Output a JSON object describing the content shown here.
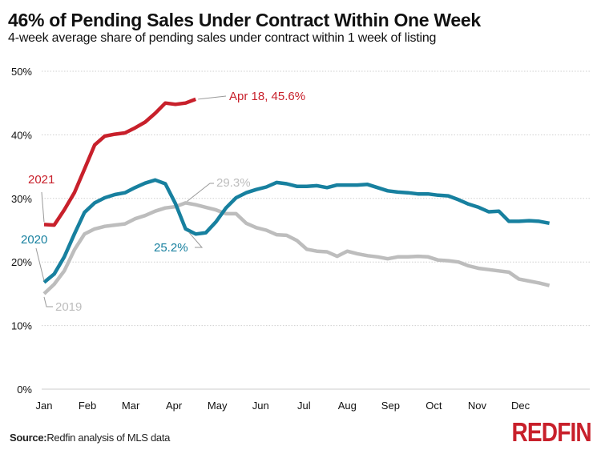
{
  "header": {
    "title": "46% of Pending Sales Under Contract Within One Week",
    "subtitle": "4-week average share of pending sales under contract within 1 week of listing"
  },
  "footer": {
    "source_label": "Source:",
    "source_text": "Redfin analysis of MLS data",
    "logo": "REDFIN"
  },
  "colors": {
    "2021": "#c8202b",
    "2020": "#17809f",
    "2019": "#bdbdbd",
    "grid": "#cfcfcf",
    "axis": "#cccccc"
  },
  "chart_data": {
    "type": "line",
    "title": "46% of Pending Sales Under Contract Within One Week",
    "subtitle": "4-week average share of pending sales under contract within 1 week of listing",
    "xlabel": "",
    "ylabel": "",
    "ylim": [
      0,
      50
    ],
    "yticks": [
      0,
      10,
      20,
      30,
      40,
      50
    ],
    "ytick_labels": [
      "0%",
      "10%",
      "20%",
      "30%",
      "40%",
      "50%"
    ],
    "xtick_labels": [
      "Jan",
      "Feb",
      "Mar",
      "Apr",
      "May",
      "Jun",
      "Jul",
      "Aug",
      "Sep",
      "Oct",
      "Nov",
      "Dec"
    ],
    "x_unit": "week of year (0 = first week of Jan, 52 weeks)",
    "grid": "horizontal dotted",
    "series": [
      {
        "name": "2021",
        "label": "2021",
        "values": [
          25.9,
          25.8,
          28.2,
          30.9,
          34.6,
          38.4,
          39.8,
          40.1,
          40.3,
          41.1,
          42.0,
          43.4,
          45.0,
          44.8,
          45.0,
          45.6
        ]
      },
      {
        "name": "2020",
        "label": "2020",
        "values": [
          16.8,
          18.1,
          20.8,
          24.4,
          27.8,
          29.3,
          30.1,
          30.6,
          30.9,
          31.7,
          32.4,
          32.9,
          32.3,
          29.2,
          25.2,
          24.4,
          24.6,
          26.3,
          28.5,
          30.1,
          30.9,
          31.4,
          31.8,
          32.5,
          32.3,
          31.9,
          31.9,
          32.0,
          31.7,
          32.1,
          32.1,
          32.1,
          32.2,
          31.7,
          31.2,
          31.0,
          30.9,
          30.7,
          30.7,
          30.5,
          30.4,
          29.8,
          29.1,
          28.6,
          27.9,
          28.0,
          26.4,
          26.4,
          26.5,
          26.4,
          26.1
        ]
      },
      {
        "name": "2019",
        "label": "2019",
        "values": [
          15.0,
          16.5,
          18.6,
          21.9,
          24.4,
          25.2,
          25.6,
          25.8,
          26.0,
          26.8,
          27.3,
          28.0,
          28.5,
          28.7,
          29.3,
          29.0,
          28.6,
          28.2,
          27.6,
          27.6,
          26.1,
          25.4,
          25.0,
          24.3,
          24.2,
          23.4,
          22.0,
          21.7,
          21.6,
          20.9,
          21.7,
          21.3,
          21.0,
          20.8,
          20.5,
          20.8,
          20.8,
          20.9,
          20.8,
          20.3,
          20.2,
          20.0,
          19.4,
          19.0,
          18.8,
          18.6,
          18.4,
          17.3,
          17.0,
          16.7,
          16.3
        ]
      }
    ],
    "annotations": [
      {
        "series": "2021",
        "text": "Apr 18, 45.6%"
      },
      {
        "series": "2020",
        "text": "25.2%"
      },
      {
        "series": "2019",
        "text": "29.3%"
      }
    ]
  }
}
